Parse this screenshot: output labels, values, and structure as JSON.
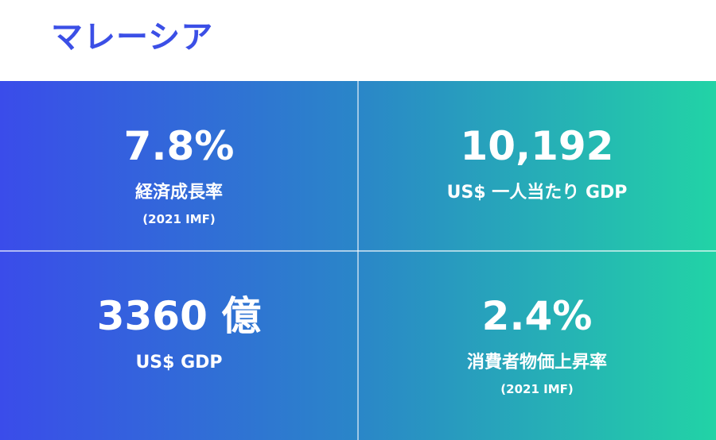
{
  "header": {
    "title": "マレーシア"
  },
  "stats": [
    {
      "value": "7.8%",
      "label": "経済成長率",
      "note": "(2021 IMF)"
    },
    {
      "value": "10,192",
      "label": "US$ 一人当たり GDP"
    },
    {
      "value": "3360 億",
      "label": "US$ GDP"
    },
    {
      "value": "2.4%",
      "label": "消費者物価上昇率",
      "note": "(2021 IMF)"
    }
  ]
}
